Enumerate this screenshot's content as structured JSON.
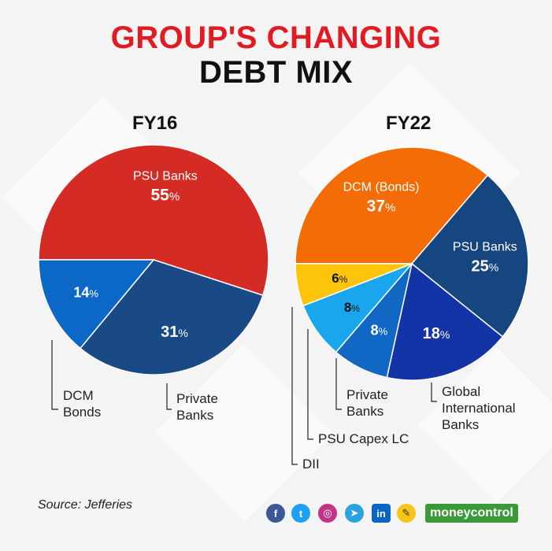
{
  "title": {
    "line1": "GROUP'S CHANGING",
    "line2": "DEBT MIX"
  },
  "source": "Source: Jefferies",
  "brand": "moneycontrol",
  "social_icons": [
    "facebook-icon",
    "twitter-icon",
    "instagram-icon",
    "telegram-icon",
    "linkedin-icon",
    "koo-icon"
  ],
  "colors": {
    "title_red": "#e11b22",
    "psu_red": "#d42b25",
    "dcm_blue": "#0b68c6",
    "private_navy": "#1a4a85",
    "dcm_orange": "#f36c06",
    "psu_navy": "#16467f",
    "global_blue": "#1334a6",
    "private_blue": "#1068c4",
    "capex_lightblue": "#1aa6ec",
    "dii_yellow": "#fcc40a"
  },
  "chart_data": [
    {
      "type": "pie",
      "title": "FY16",
      "slices": [
        {
          "label": "PSU Banks",
          "value": 55,
          "display": "55",
          "color": "#d42b25"
        },
        {
          "label": "Private Banks",
          "value": 31,
          "display": "31",
          "color": "#1a4a85"
        },
        {
          "label": "DCM Bonds",
          "value": 14,
          "display": "14",
          "color": "#0b68c6"
        }
      ]
    },
    {
      "type": "pie",
      "title": "FY22",
      "slices": [
        {
          "label": "DCM (Bonds)",
          "value": 37,
          "display": "37",
          "color": "#f36c06"
        },
        {
          "label": "PSU Banks",
          "value": 25,
          "display": "25",
          "color": "#16467f"
        },
        {
          "label": "Global International Banks",
          "value": 18,
          "display": "18",
          "color": "#1334a6"
        },
        {
          "label": "Private Banks",
          "value": 8,
          "display": "8",
          "color": "#1068c4"
        },
        {
          "label": "PSU Capex LC",
          "value": 8,
          "display": "8",
          "color": "#1aa6ec"
        },
        {
          "label": "DII",
          "value": 6,
          "display": "6",
          "color": "#fcc40a"
        }
      ]
    }
  ]
}
